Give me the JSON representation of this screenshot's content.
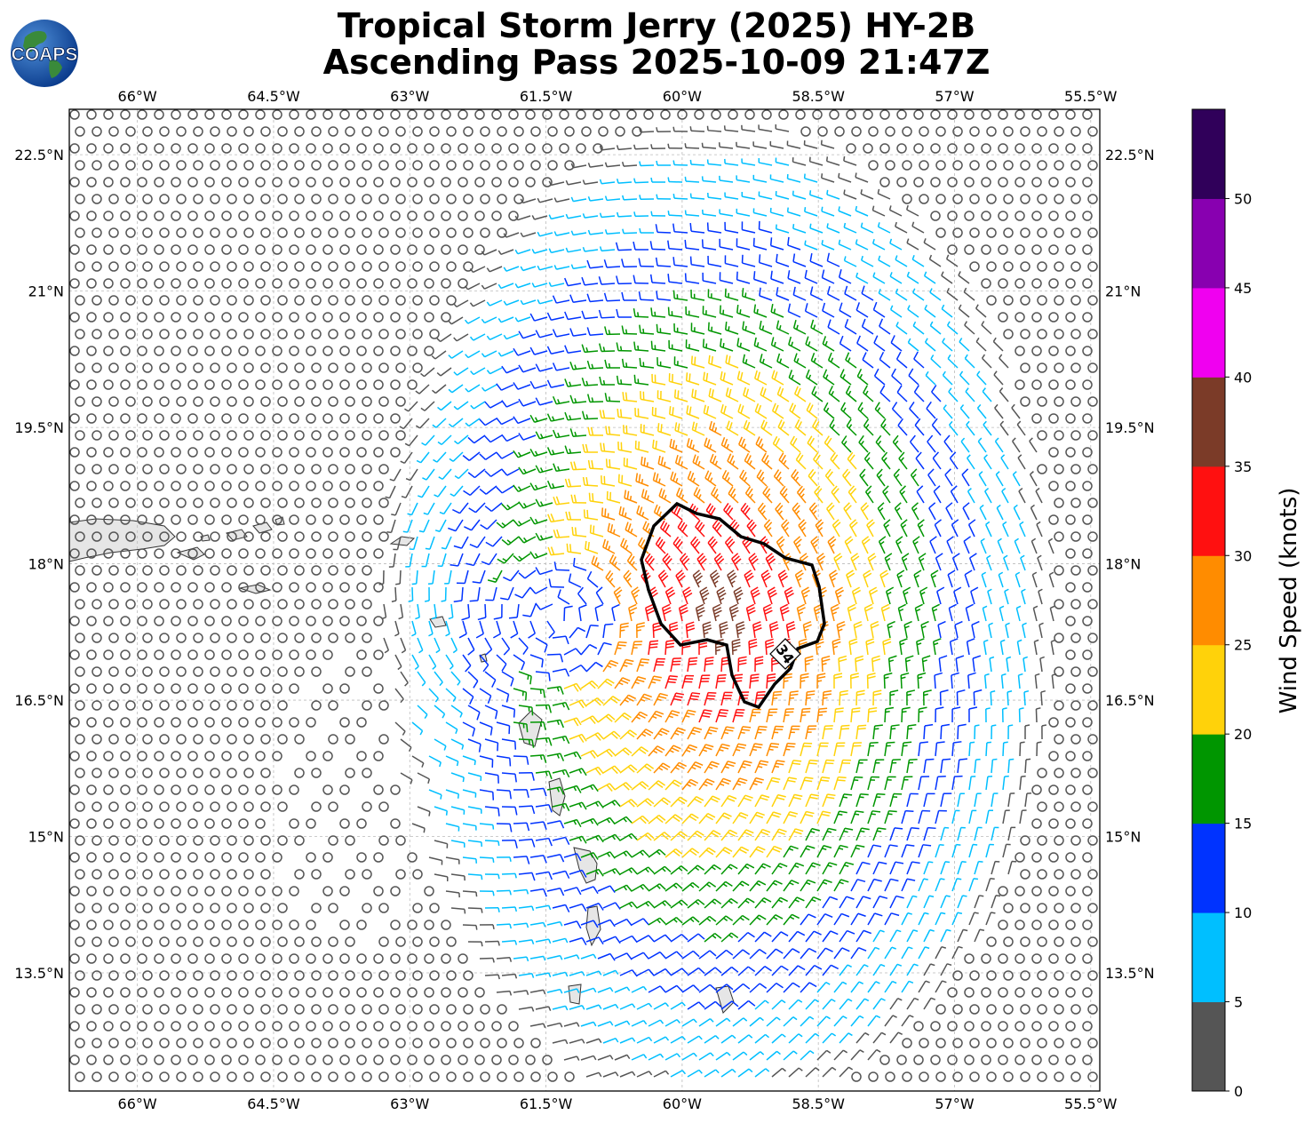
{
  "titles": {
    "line1": "Tropical Storm Jerry (2025) HY-2B",
    "line2": "Ascending Pass 2025-10-09 21:47Z"
  },
  "logo": {
    "text": "COAPS",
    "icon": "globe-icon"
  },
  "map": {
    "lon_range": [
      -66.75,
      -55.4
    ],
    "lat_range": [
      12.2,
      23.0
    ],
    "lon_ticks": [
      "66°W",
      "64.5°W",
      "63°W",
      "61.5°W",
      "60°W",
      "58.5°W",
      "57°W",
      "55.5°W"
    ],
    "lon_tick_values": [
      -66,
      -64.5,
      -63,
      -61.5,
      -60,
      -58.5,
      -57,
      -55.5
    ],
    "lat_ticks": [
      "22.5°N",
      "21°N",
      "19.5°N",
      "18°N",
      "16.5°N",
      "15°N",
      "13.5°N"
    ],
    "lat_tick_values": [
      22.5,
      21,
      19.5,
      18,
      16.5,
      15,
      13.5
    ],
    "gridlines": true,
    "storm_center": {
      "lon": -61.4,
      "lat": 17.4
    },
    "contour_label": "34",
    "land_color": "#e6e6e6"
  },
  "colorbar": {
    "label": "Wind Speed (knots)",
    "tick_labels": [
      "0",
      "5",
      "10",
      "15",
      "20",
      "25",
      "30",
      "35",
      "40",
      "45",
      "50"
    ],
    "bins": [
      0,
      5,
      10,
      15,
      20,
      25,
      30,
      35,
      40,
      45,
      50,
      55
    ],
    "colors": [
      "#555555",
      "#00bfff",
      "#0033ff",
      "#009600",
      "#ffd20a",
      "#ff8c00",
      "#ff1010",
      "#7b3b28",
      "#f000f0",
      "#8800b0",
      "#30005a"
    ]
  }
}
